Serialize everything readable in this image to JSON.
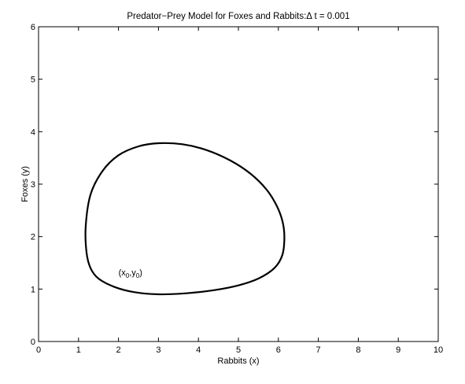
{
  "chart_data": {
    "type": "line",
    "title": "Predator−Prey Model for Foxes and Rabbits:Δ t = 0.001",
    "xlabel": "Rabbits (x)",
    "ylabel": "Foxes (y)",
    "xlim": [
      0,
      10
    ],
    "ylim": [
      0,
      6
    ],
    "xticks": [
      0,
      1,
      2,
      3,
      4,
      5,
      6,
      7,
      8,
      9,
      10
    ],
    "yticks": [
      0,
      1,
      2,
      3,
      4,
      5,
      6
    ],
    "grid": false,
    "legend": "none",
    "line_color": "#000000",
    "series": [
      {
        "x": [
          3.0,
          3.7,
          4.4,
          5.0,
          5.5,
          5.9,
          6.1,
          6.15,
          6.1,
          5.95,
          5.7,
          5.3,
          4.8,
          4.2,
          3.6,
          3.0,
          2.5,
          2.0,
          1.6,
          1.3,
          1.18,
          1.2,
          1.3,
          1.5,
          1.9,
          2.4,
          3.0
        ],
        "y": [
          0.9,
          0.92,
          0.98,
          1.07,
          1.2,
          1.4,
          1.65,
          2.0,
          2.3,
          2.6,
          2.9,
          3.2,
          3.45,
          3.65,
          3.76,
          3.78,
          3.72,
          3.55,
          3.25,
          2.8,
          2.2,
          1.7,
          1.4,
          1.2,
          1.04,
          0.94,
          0.9
        ]
      }
    ],
    "annotations": [
      {
        "text_x": "x",
        "sub_x": "0",
        "text_y": "y",
        "sub_y": "0",
        "x": 2.0,
        "y": 1.2
      }
    ]
  }
}
